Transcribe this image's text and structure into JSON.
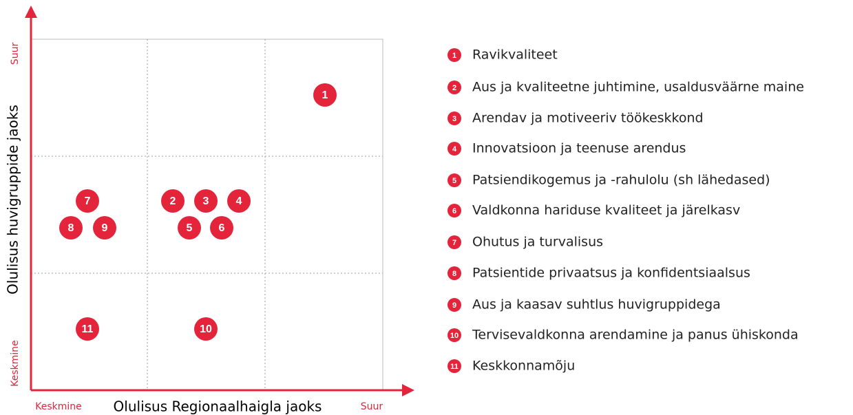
{
  "x_axis": {
    "title": "Olulisus Regionaalhaigla jaoks",
    "low": "Keskmine",
    "high": "Suur"
  },
  "y_axis": {
    "title": "Olulisus huvigruppide jaoks",
    "low": "Keskmine",
    "high": "Suur"
  },
  "items": [
    {
      "number": "1",
      "label": "Ravikvaliteet"
    },
    {
      "number": "2",
      "label": "Aus ja kvaliteetne juhtimine, usaldusväärne maine"
    },
    {
      "number": "3",
      "label": "Arendav ja motiveeriv töökeskkond"
    },
    {
      "number": "4",
      "label": "Innovatsioon ja teenuse arendus"
    },
    {
      "number": "5",
      "label": "Patsiendikogemus ja -rahulolu (sh lähedased)"
    },
    {
      "number": "6",
      "label": "Valdkonna hariduse kvaliteet ja järelkasv"
    },
    {
      "number": "7",
      "label": "Ohutus ja turvalisus"
    },
    {
      "number": "8",
      "label": "Patsientide privaatsus ja konfidentsiaalsus"
    },
    {
      "number": "9",
      "label": "Aus ja kaasav suhtlus huvigruppidega"
    },
    {
      "number": "10",
      "label": "Tervisevaldkonna arendamine ja panus ühiskonda"
    },
    {
      "number": "11",
      "label": "Keskkonnamõju"
    }
  ]
}
